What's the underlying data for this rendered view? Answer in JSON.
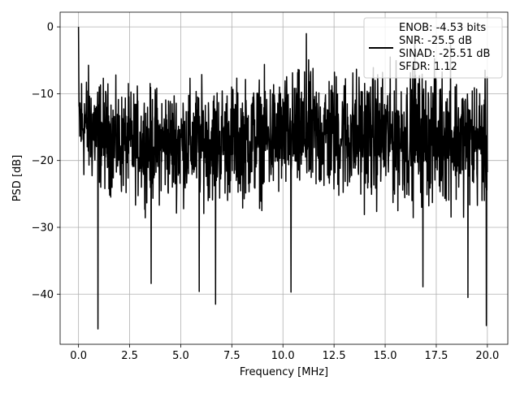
{
  "chart_data": {
    "type": "line",
    "title": "",
    "xlabel": "Frequency [MHz]",
    "ylabel": "PSD [dB]",
    "xlim": [
      -0.9,
      21.0
    ],
    "ylim": [
      -47.5,
      2.2
    ],
    "xticks": [
      0.0,
      2.5,
      5.0,
      7.5,
      10.0,
      12.5,
      15.0,
      17.5,
      20.0
    ],
    "xtick_labels": [
      "0.0",
      "2.5",
      "5.0",
      "7.5",
      "10.0",
      "12.5",
      "15.0",
      "17.5",
      "20.0"
    ],
    "yticks": [
      0,
      -10,
      -20,
      -30,
      -40
    ],
    "ytick_labels": [
      "0",
      "−10",
      "−20",
      "−30",
      "−40"
    ],
    "grid": true,
    "legend_position": "top-right",
    "legend_lines": [
      "ENOB: -4.53 bits",
      "SNR: -25.5 dB",
      "SINAD: -25.51 dB",
      "SFDR: 1.12"
    ],
    "series": [
      {
        "name": "ENOB: -4.53 bits\nSNR: -25.5 dB\nSINAD: -25.51 dB\nSFDR: 1.12",
        "color": "#000000",
        "num_points": 1600,
        "x_range": [
          0.0,
          20.0
        ],
        "anchors": [
          {
            "x": 0.0,
            "y": 0.0
          },
          {
            "x": 0.04,
            "y": -12.0
          },
          {
            "x": 0.95,
            "y": -45.2
          },
          {
            "x": 3.55,
            "y": -38.4
          },
          {
            "x": 5.9,
            "y": -39.6
          },
          {
            "x": 6.7,
            "y": -41.5
          },
          {
            "x": 10.4,
            "y": -39.7
          },
          {
            "x": 16.85,
            "y": -38.9
          },
          {
            "x": 19.05,
            "y": -40.5
          },
          {
            "x": 19.95,
            "y": -44.7
          },
          {
            "x": 11.15,
            "y": -1.0
          },
          {
            "x": 16.45,
            "y": -1.3
          },
          {
            "x": 18.2,
            "y": -2.6
          }
        ],
        "envelope": [
          {
            "x": 0.0,
            "upper": -2,
            "lower": -26
          },
          {
            "x": 2.0,
            "upper": -7,
            "lower": -28
          },
          {
            "x": 4.0,
            "upper": -6,
            "lower": -29
          },
          {
            "x": 8.0,
            "upper": -5,
            "lower": -29
          },
          {
            "x": 12.0,
            "upper": -3,
            "lower": -29
          },
          {
            "x": 15.0,
            "upper": -3,
            "lower": -30
          },
          {
            "x": 18.0,
            "upper": -3,
            "lower": -30
          },
          {
            "x": 20.0,
            "upper": -5,
            "lower": -30
          }
        ]
      }
    ]
  }
}
